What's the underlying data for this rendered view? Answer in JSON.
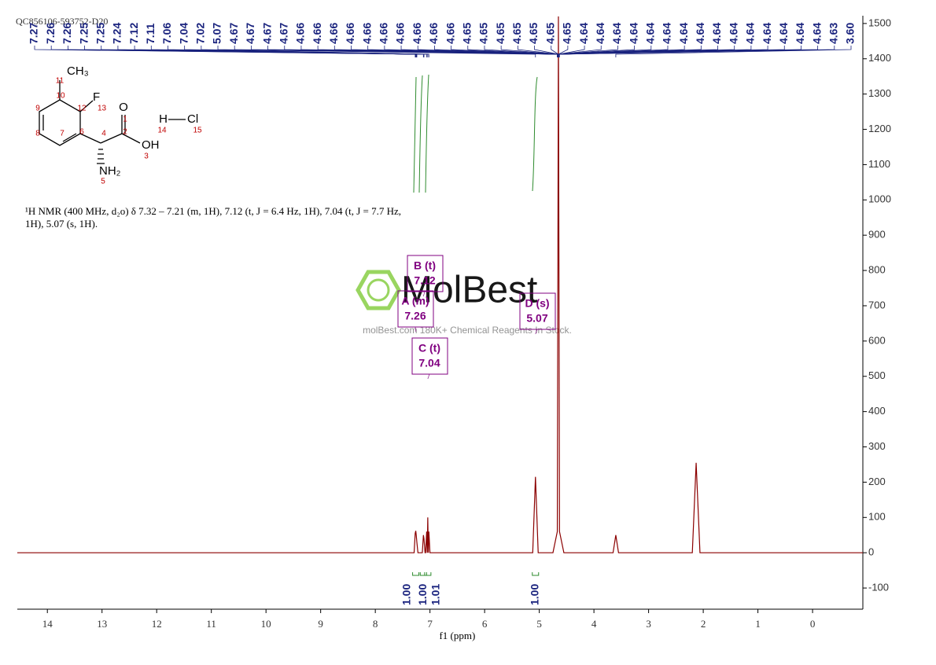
{
  "title": "QC856106-593752-D20",
  "structure": {
    "atoms": [
      "CH₃",
      "11",
      "10",
      "F",
      "13",
      "12",
      "9",
      "8",
      "7",
      "6",
      "4",
      "O",
      "1",
      "2",
      "OH",
      "3",
      "NH₂",
      "5",
      "H",
      "14",
      "Cl",
      "15"
    ]
  },
  "description": [
    "¹H NMR (400 MHz, d₂o) δ 7.32 – 7.21 (m, 1H), 7.12 (t, J = 6.4 Hz, 1H), 7.04 (t, J = 7.7 Hz,",
    "1H), 5.07 (s, 1H)."
  ],
  "watermark": {
    "brand": "MolBest",
    "tagline": "molBest.com 180K+ Chemical Reagents In Stock."
  },
  "chart_data": {
    "type": "line",
    "x_label": "f1 (ppm)",
    "xlim": [
      14.55,
      -0.92
    ],
    "ylim": [
      -160,
      1522
    ],
    "xticks": [
      14,
      13,
      12,
      11,
      10,
      9,
      8,
      7,
      6,
      5,
      4,
      3,
      2,
      1,
      0
    ],
    "yticks": [
      -100,
      0,
      100,
      200,
      300,
      400,
      500,
      600,
      700,
      800,
      900,
      1000,
      1100,
      1200,
      1300,
      1400,
      1500
    ],
    "series": [
      {
        "color": "#8b0000",
        "x": [
          14.55,
          7.5,
          7.29,
          7.27,
          7.26,
          7.25,
          7.24,
          7.22,
          7.14,
          7.12,
          7.11,
          7.09,
          7.08,
          7.06,
          7.05,
          7.04,
          7.03,
          7.02,
          7.0,
          5.12,
          5.07,
          5.02,
          4.75,
          4.67,
          4.65,
          4.63,
          4.55,
          3.65,
          3.6,
          3.55,
          2.2,
          2.13,
          2.06,
          -0.92
        ],
        "values": [
          0,
          0,
          0,
          55,
          62,
          48,
          30,
          0,
          0,
          50,
          40,
          0,
          0,
          60,
          0,
          100,
          0,
          60,
          0,
          0,
          215,
          0,
          0,
          60,
          1520,
          60,
          0,
          0,
          50,
          0,
          0,
          255,
          0,
          0
        ]
      }
    ],
    "peaks": [
      7.27,
      7.26,
      7.26,
      7.25,
      7.25,
      7.24,
      7.12,
      7.11,
      7.06,
      7.04,
      7.02,
      5.07,
      4.67,
      4.67,
      4.67,
      4.67,
      4.66,
      4.66,
      4.66,
      4.66,
      4.66,
      4.66,
      4.66,
      4.66,
      4.66,
      4.66,
      4.65,
      4.65,
      4.65,
      4.65,
      4.65,
      4.65,
      4.65,
      4.64,
      4.64,
      4.64,
      4.64,
      4.64,
      4.64,
      4.64,
      4.64,
      4.64,
      4.64,
      4.64,
      4.64,
      4.64,
      4.64,
      4.64,
      4.63,
      {
        "value": 3.6,
        "label": "3.60"
      }
    ],
    "multiplets": [
      {
        "name": "A (m)",
        "shift": 7.26
      },
      {
        "name": "B (t)",
        "shift": 7.12
      },
      {
        "name": "C (t)",
        "shift": 7.04
      },
      {
        "name": "D (s)",
        "shift": 5.07
      }
    ],
    "integrals": {
      "x": [
        7.26,
        7.12,
        7.04,
        5.07
      ],
      "values": [
        {
          "value": 1,
          "label": "1.00"
        },
        {
          "value": 1,
          "label": "1.00"
        },
        {
          "value": 1.01,
          "label": "1.01"
        },
        {
          "value": 1,
          "label": "1.00"
        }
      ]
    }
  }
}
